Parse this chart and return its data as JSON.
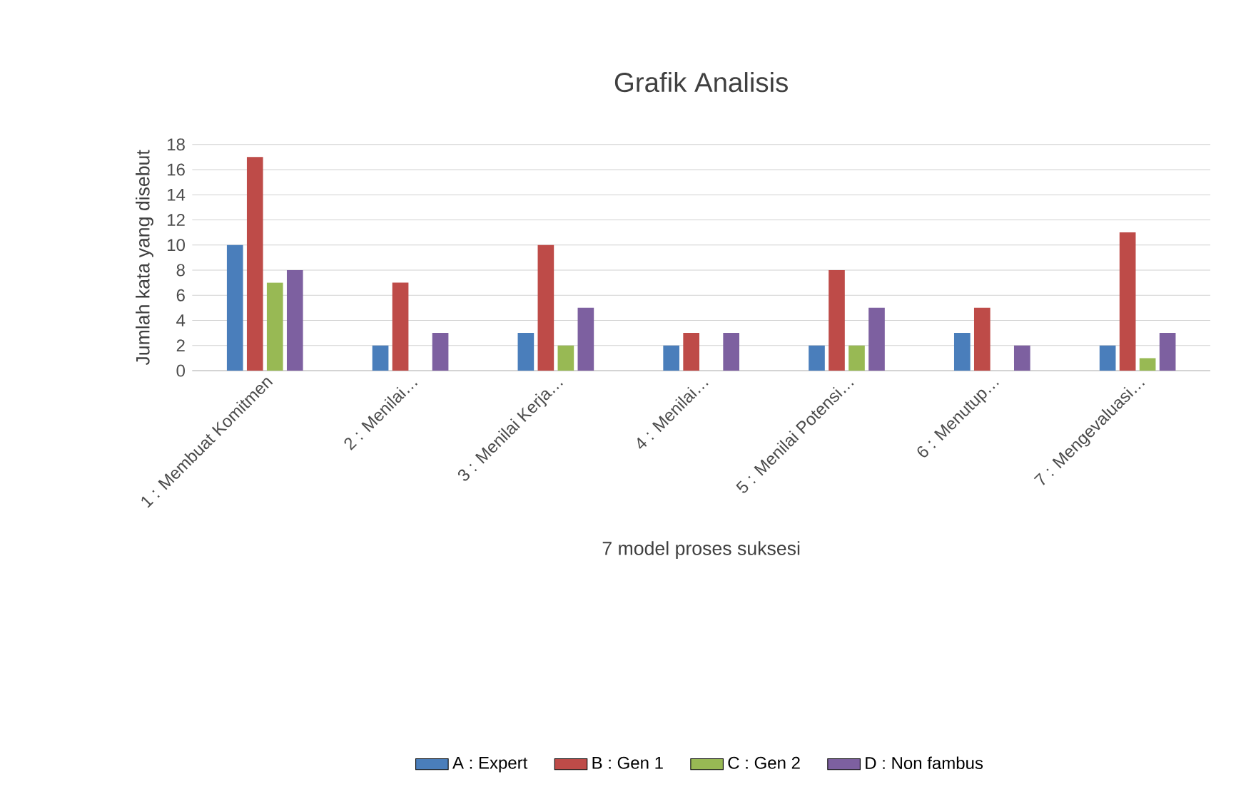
{
  "chart_data": {
    "type": "bar",
    "title": "Grafik Analisis",
    "xlabel": "7 model proses suksesi",
    "ylabel": "Jumlah kata yang disebut",
    "categories": [
      "1 : Membuat Komitmen",
      "2 : Menilai…",
      "3 : Menilai Kerja…",
      "4 : Menilai…",
      "5 : Menilai Potensi…",
      "6 : Menutup…",
      "7 : Mengevaluasi…"
    ],
    "series": [
      {
        "name": "A : Expert",
        "color": "#4a7ebb",
        "values": [
          10,
          2,
          3,
          2,
          2,
          3,
          2
        ]
      },
      {
        "name": "B : Gen 1",
        "color": "#be4b48",
        "values": [
          17,
          7,
          10,
          3,
          8,
          5,
          11
        ]
      },
      {
        "name": "C : Gen 2",
        "color": "#98b954",
        "values": [
          7,
          0,
          2,
          0,
          2,
          0,
          1
        ]
      },
      {
        "name": "D : Non fambus",
        "color": "#7d60a0",
        "values": [
          8,
          3,
          5,
          3,
          5,
          2,
          3
        ]
      }
    ],
    "ylim": [
      0,
      18
    ],
    "yticks": [
      0,
      2,
      4,
      6,
      8,
      10,
      12,
      14,
      16,
      18
    ],
    "grid": "y",
    "legend": "bottom"
  }
}
